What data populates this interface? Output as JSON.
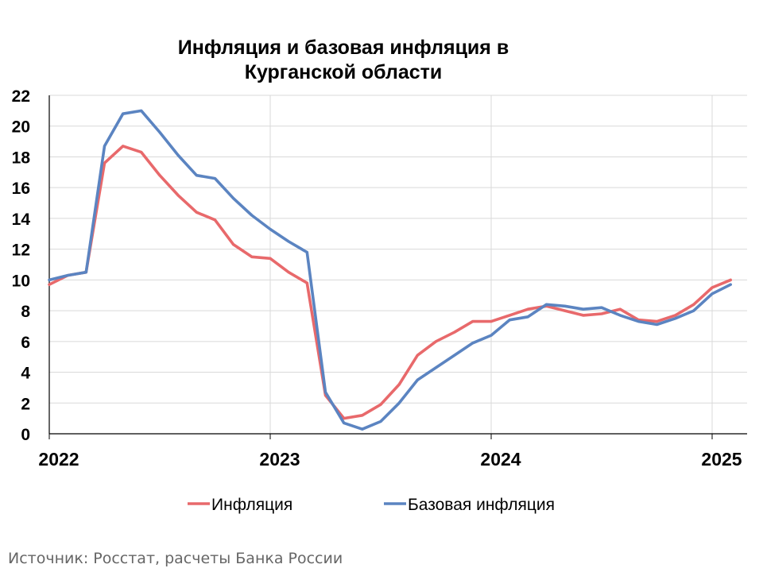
{
  "chart_data": {
    "type": "line",
    "title_lines": [
      "Инфляция и базовая инфляция в",
      "Курганской области"
    ],
    "xlabel": "",
    "ylabel": "",
    "ylim": [
      0,
      22
    ],
    "yticks": [
      0,
      2,
      4,
      6,
      8,
      10,
      12,
      14,
      16,
      18,
      20,
      22
    ],
    "xlim": [
      "2022-01",
      "2025-02"
    ],
    "xticks": [
      {
        "label": "2022",
        "month": "2022-01"
      },
      {
        "label": "2023",
        "month": "2023-01"
      },
      {
        "label": "2024",
        "month": "2024-01"
      },
      {
        "label": "2025",
        "month": "2025-01"
      }
    ],
    "grid": true,
    "legend_position": "bottom",
    "x": [
      "2022-01",
      "2022-02",
      "2022-03",
      "2022-04",
      "2022-05",
      "2022-06",
      "2022-07",
      "2022-08",
      "2022-09",
      "2022-10",
      "2022-11",
      "2022-12",
      "2023-01",
      "2023-02",
      "2023-03",
      "2023-04",
      "2023-05",
      "2023-06",
      "2023-07",
      "2023-08",
      "2023-09",
      "2023-10",
      "2023-11",
      "2023-12",
      "2024-01",
      "2024-02",
      "2024-03",
      "2024-04",
      "2024-05",
      "2024-06",
      "2024-07",
      "2024-08",
      "2024-09",
      "2024-10",
      "2024-11",
      "2024-12",
      "2025-01",
      "2025-02"
    ],
    "series": [
      {
        "name": "Инфляция",
        "color": "#e8696b",
        "values": [
          9.7,
          10.3,
          10.5,
          17.6,
          18.7,
          18.3,
          16.8,
          15.5,
          14.4,
          13.9,
          12.3,
          11.5,
          11.4,
          10.5,
          9.8,
          2.5,
          1.0,
          1.2,
          1.9,
          3.2,
          5.1,
          6.0,
          6.6,
          7.3,
          7.3,
          7.7,
          8.1,
          8.3,
          8.0,
          7.7,
          7.8,
          8.1,
          7.4,
          7.3,
          7.7,
          8.4,
          9.5,
          10.0
        ]
      },
      {
        "name": "Базовая инфляция",
        "color": "#5b84c1",
        "values": [
          10.0,
          10.3,
          10.5,
          18.7,
          20.8,
          21.0,
          19.6,
          18.1,
          16.8,
          16.6,
          15.3,
          14.2,
          13.3,
          12.5,
          11.8,
          2.7,
          0.7,
          0.3,
          0.8,
          2.0,
          3.5,
          4.3,
          5.1,
          5.9,
          6.4,
          7.4,
          7.6,
          8.4,
          8.3,
          8.1,
          8.2,
          7.7,
          7.3,
          7.1,
          7.5,
          8.0,
          9.1,
          9.7
        ]
      }
    ]
  },
  "source": "Источник: Росстат, расчеты Банка России"
}
